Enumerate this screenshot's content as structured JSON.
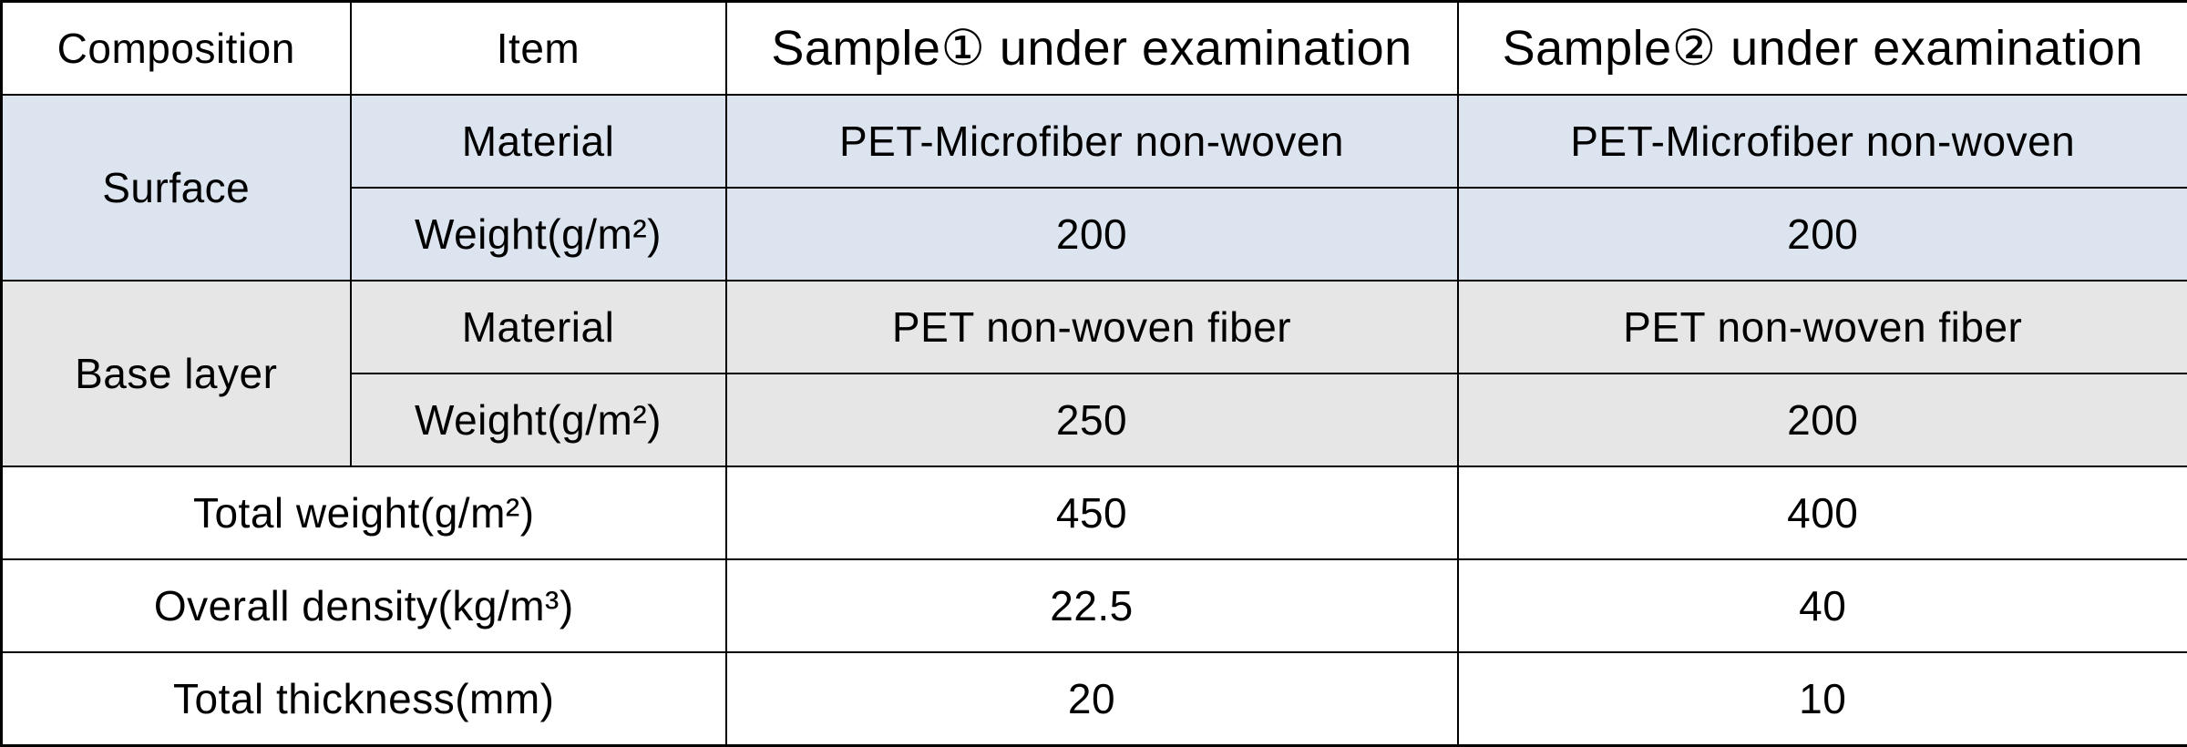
{
  "table": {
    "header": [
      "Composition",
      "Item",
      "Sample① under examination",
      "Sample② under examination"
    ],
    "groups": [
      {
        "label": "Surface",
        "rows": [
          {
            "item": "Material",
            "values": [
              "PET-Microfiber non-woven",
              "PET-Microfiber non-woven"
            ]
          },
          {
            "item": "Weight(g/m²)",
            "values": [
              "200",
              "200"
            ]
          }
        ]
      },
      {
        "label": "Base layer",
        "rows": [
          {
            "item": "Material",
            "values": [
              "PET non-woven fiber",
              "PET non-woven fiber"
            ]
          },
          {
            "item": "Weight(g/m²)",
            "values": [
              "250",
              "200"
            ]
          }
        ]
      }
    ],
    "totals": [
      {
        "label": "Total weight(g/m²)",
        "values": [
          "450",
          "400"
        ]
      },
      {
        "label": "Overall density(kg/m³)",
        "values": [
          "22.5",
          "40"
        ]
      },
      {
        "label": "Total thickness(mm)",
        "values": [
          "20",
          "10"
        ]
      }
    ]
  }
}
